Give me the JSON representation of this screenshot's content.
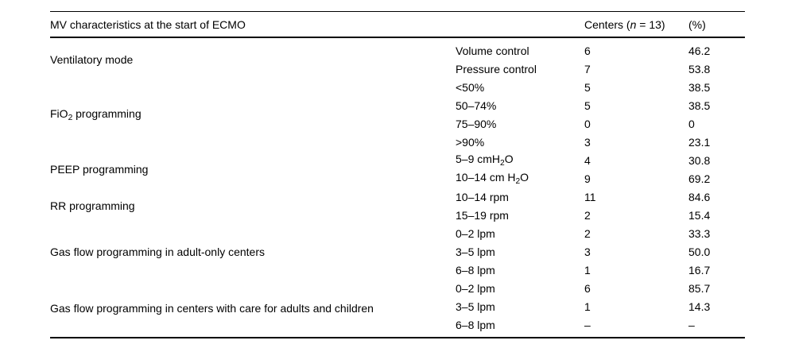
{
  "table": {
    "header": {
      "characteristics": "MV characteristics at the start of ECMO",
      "centers": "Centers (*n* = 13)",
      "percent": "(%)"
    },
    "groups": [
      {
        "label": "Ventilatory mode",
        "rows": [
          {
            "label": "Volume control",
            "centers": "6",
            "pct": "46.2"
          },
          {
            "label": "Pressure control",
            "centers": "7",
            "pct": "53.8"
          }
        ]
      },
      {
        "label": "FiO~2~ programming",
        "rows": [
          {
            "label": "<50%",
            "centers": "5",
            "pct": "38.5"
          },
          {
            "label": "50–74%",
            "centers": "5",
            "pct": "38.5"
          },
          {
            "label": "75–90%",
            "centers": "0",
            "pct": "0"
          },
          {
            "label": ">90%",
            "centers": "3",
            "pct": "23.1"
          }
        ]
      },
      {
        "label": "PEEP programming",
        "rows": [
          {
            "label": "5–9 cmH~2~O",
            "centers": "4",
            "pct": "30.8"
          },
          {
            "label": "10–14 cm H~2~O",
            "centers": "9",
            "pct": "69.2"
          }
        ]
      },
      {
        "label": "RR programming",
        "rows": [
          {
            "label": "10–14 rpm",
            "centers": "11",
            "pct": "84.6"
          },
          {
            "label": "15–19 rpm",
            "centers": "2",
            "pct": "15.4"
          }
        ]
      },
      {
        "label": "Gas flow programming in adult-only centers",
        "rows": [
          {
            "label": "0–2 lpm",
            "centers": "2",
            "pct": "33.3"
          },
          {
            "label": "3–5 lpm",
            "centers": "3",
            "pct": "50.0"
          },
          {
            "label": "6–8 lpm",
            "centers": "1",
            "pct": "16.7"
          }
        ]
      },
      {
        "label": "Gas flow programming in centers with care for adults and children",
        "rows": [
          {
            "label": "0–2 lpm",
            "centers": "6",
            "pct": "85.7"
          },
          {
            "label": "3–5 lpm",
            "centers": "1",
            "pct": "14.3"
          },
          {
            "label": "6–8 lpm",
            "centers": "–",
            "pct": "–"
          }
        ]
      }
    ]
  }
}
